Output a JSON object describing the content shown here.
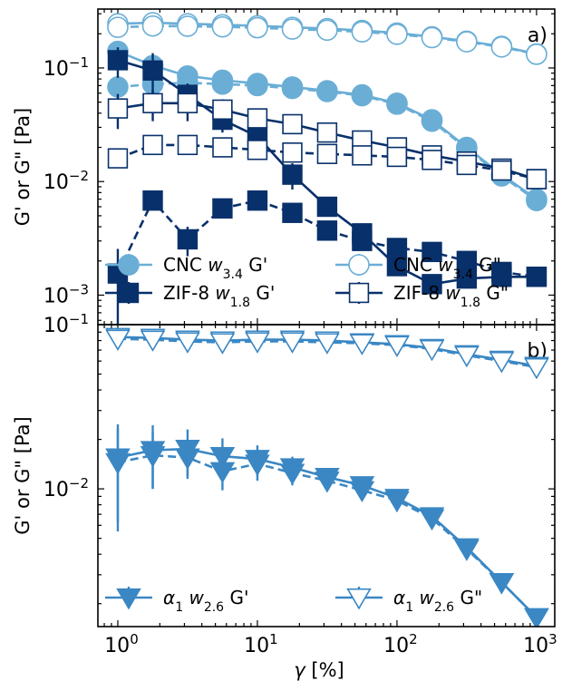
{
  "chart_data": [
    {
      "type": "line",
      "panel_label": "a)",
      "xscale": "log",
      "yscale": "log",
      "xlim": [
        0.72,
        1350
      ],
      "ylim": [
        0.00055,
        0.33
      ],
      "xlabel": "",
      "ylabel": "G' or G\" [Pa]",
      "y_ticks": [
        {
          "value": 0.001,
          "mantissa": "10",
          "exp": "−3"
        },
        {
          "value": 0.01,
          "mantissa": "10",
          "exp": "−2"
        },
        {
          "value": 0.1,
          "mantissa": "10",
          "exp": "−1"
        }
      ],
      "legend": {
        "placement": "lower-center",
        "columns": 2
      },
      "series": [
        {
          "name": "CNC w3.4 G'",
          "legend": {
            "pre": "CNC ",
            "var": "w",
            "sub": "3.4",
            "post": " G'"
          },
          "color": "#6aaed6",
          "marker": "circle",
          "filled": true,
          "linestyle": "solid",
          "x": [
            1,
            1.78,
            3.16,
            5.62,
            10,
            17.8,
            31.6,
            56.2,
            100,
            178,
            316,
            562,
            1000
          ],
          "y": [
            0.14,
            0.105,
            0.085,
            0.078,
            0.073,
            0.068,
            0.063,
            0.058,
            0.049,
            0.035,
            0.02,
            0.0115,
            0.007
          ],
          "yerr": [
            0.02,
            0.01,
            0.004,
            0.003,
            0.003,
            0.003,
            0.002,
            0.002,
            0.002,
            0.002,
            0.001,
            0.0005,
            0.0003
          ]
        },
        {
          "name": "CNC w3.4 G'' (dashed)",
          "legend": null,
          "color": "#6aaed6",
          "marker": "circle",
          "filled": true,
          "linestyle": "dashed",
          "x": [
            1,
            1.78,
            3.16,
            5.62,
            10,
            17.8,
            31.6,
            56.2,
            100,
            178,
            316,
            562,
            1000
          ],
          "y": [
            0.068,
            0.072,
            0.074,
            0.072,
            0.07,
            0.066,
            0.062,
            0.057,
            0.048,
            0.034,
            0.0195,
            0.0112,
            0.0068
          ],
          "yerr": [
            0.006,
            0.004,
            0.003,
            0.003,
            0.003,
            0.002,
            0.002,
            0.002,
            0.002,
            0.001,
            0.001,
            0.0005,
            0.0003
          ]
        },
        {
          "name": "CNC w3.4 G\"",
          "legend": {
            "pre": "CNC ",
            "var": "w",
            "sub": "3.4",
            "post": " G\""
          },
          "color": "#6aaed6",
          "marker": "circle",
          "filled": false,
          "linestyle": "solid",
          "x": [
            1,
            1.78,
            3.16,
            5.62,
            10,
            17.8,
            31.6,
            56.2,
            100,
            178,
            316,
            562,
            1000
          ],
          "y": [
            0.245,
            0.25,
            0.245,
            0.24,
            0.235,
            0.228,
            0.222,
            0.214,
            0.203,
            0.188,
            0.172,
            0.155,
            0.133
          ],
          "yerr": [
            0.01,
            0.008,
            0.006,
            0.005,
            0.005,
            0.004,
            0.004,
            0.004,
            0.004,
            0.003,
            0.003,
            0.003,
            0.003
          ]
        },
        {
          "name": "CNC w3.4 G\" (dashed)",
          "legend": null,
          "color": "#6aaed6",
          "marker": "circle",
          "filled": false,
          "linestyle": "dashed",
          "x": [
            1,
            1.78,
            3.16,
            5.62,
            10,
            17.8,
            31.6,
            56.2,
            100,
            178,
            316,
            562,
            1000
          ],
          "y": [
            0.228,
            0.234,
            0.233,
            0.23,
            0.226,
            0.22,
            0.215,
            0.208,
            0.198,
            0.185,
            0.17,
            0.153,
            0.132
          ],
          "yerr": [
            0.008,
            0.006,
            0.005,
            0.005,
            0.004,
            0.004,
            0.004,
            0.004,
            0.003,
            0.003,
            0.003,
            0.003,
            0.003
          ]
        },
        {
          "name": "ZIF-8 w1.8 G'",
          "legend": {
            "pre": "ZIF-8 ",
            "var": "w",
            "sub": "1.8",
            "post": " G'"
          },
          "color": "#08306b",
          "marker": "square",
          "filled": true,
          "linestyle": "solid",
          "x": [
            1,
            1.78,
            3.16,
            5.62,
            10,
            17.8,
            31.6,
            56.2,
            100,
            178,
            316,
            562,
            1000
          ],
          "y": [
            0.117,
            0.095,
            0.058,
            0.035,
            0.025,
            0.0115,
            0.006,
            0.0035,
            0.0018,
            0.00125,
            0.0014,
            0.00145,
            0.00145
          ],
          "yerr": [
            0.035,
            0.04,
            0.015,
            0.008,
            0.006,
            0.003,
            0.001,
            0.0005,
            0.0002,
            0.00015,
            0.00012,
            0.0001,
            0.0001
          ]
        },
        {
          "name": "ZIF-8 w1.8 G' (dashed)",
          "legend": null,
          "color": "#08306b",
          "marker": "square",
          "filled": true,
          "linestyle": "dashed",
          "x": [
            1,
            1.78,
            3.16,
            5.62,
            10,
            17.8,
            31.6,
            56.2,
            100,
            178,
            316,
            562,
            1000
          ],
          "y": [
            0.00155,
            0.0068,
            0.0031,
            0.0058,
            0.0068,
            0.0053,
            0.0037,
            0.003,
            0.0026,
            0.0024,
            0.002,
            0.0016,
            0.00145
          ],
          "yerr": [
            0.001,
            0.001,
            0.0009,
            0.0005,
            0.0004,
            0.0004,
            0.0005,
            0.0004,
            0.0002,
            0.0002,
            0.0002,
            0.0001,
            0.0001
          ]
        },
        {
          "name": "ZIF-8 w1.8 G\"",
          "legend": {
            "pre": "ZIF-8 ",
            "var": "w",
            "sub": "1.8",
            "post": " G\""
          },
          "color": "#08306b",
          "marker": "square",
          "filled": false,
          "linestyle": "solid",
          "x": [
            1,
            1.78,
            3.16,
            5.62,
            10,
            17.8,
            31.6,
            56.2,
            100,
            178,
            316,
            562,
            1000
          ],
          "y": [
            0.044,
            0.049,
            0.049,
            0.043,
            0.036,
            0.032,
            0.027,
            0.023,
            0.02,
            0.017,
            0.015,
            0.013,
            0.0105
          ],
          "yerr": [
            0.015,
            0.015,
            0.015,
            0.01,
            0.008,
            0.005,
            0.003,
            0.002,
            0.001,
            0.001,
            0.001,
            0.001,
            0.0005
          ]
        },
        {
          "name": "ZIF-8 w1.8 G\" (dashed)",
          "legend": null,
          "color": "#08306b",
          "marker": "square",
          "filled": false,
          "linestyle": "dashed",
          "x": [
            1,
            1.78,
            3.16,
            5.62,
            10,
            17.8,
            31.6,
            56.2,
            100,
            178,
            316,
            562,
            1000
          ],
          "y": [
            0.016,
            0.021,
            0.021,
            0.02,
            0.019,
            0.018,
            0.0175,
            0.017,
            0.0165,
            0.0155,
            0.014,
            0.0125,
            0.0105
          ],
          "yerr": [
            0.001,
            0.002,
            0.002,
            0.002,
            0.002,
            0.002,
            0.001,
            0.001,
            0.001,
            0.001,
            0.001,
            0.001,
            0.0005
          ]
        }
      ]
    },
    {
      "type": "line",
      "panel_label": "b)",
      "xscale": "log",
      "yscale": "log",
      "xlim": [
        0.72,
        1350
      ],
      "ylim": [
        0.00145,
        0.1
      ],
      "xlabel": "γ [%]",
      "ylabel": "G' or G\" [Pa]",
      "x_ticks": [
        {
          "value": 1,
          "mantissa": "10",
          "exp": "0"
        },
        {
          "value": 10,
          "mantissa": "10",
          "exp": "1"
        },
        {
          "value": 100,
          "mantissa": "10",
          "exp": "2"
        },
        {
          "value": 1000,
          "mantissa": "10",
          "exp": "3"
        }
      ],
      "y_ticks": [
        {
          "value": 0.01,
          "mantissa": "10",
          "exp": "−2"
        },
        {
          "value": 0.1,
          "mantissa": "10",
          "exp": "−1"
        }
      ],
      "legend": {
        "placement": "lower-center",
        "columns": 2
      },
      "series": [
        {
          "name": "α1 w2.6 G'",
          "legend": {
            "pre": "",
            "alpha": "α",
            "alpha_sub": "1",
            "var": "w",
            "sub": "2.6",
            "post": " G'"
          },
          "color": "#3a87c4",
          "marker": "triangle-down",
          "filled": true,
          "linestyle": "solid",
          "x": [
            1,
            1.78,
            3.16,
            5.62,
            10,
            17.8,
            31.6,
            56.2,
            100,
            178,
            316,
            562,
            1000
          ],
          "y": [
            0.0155,
            0.0172,
            0.0175,
            0.0158,
            0.0152,
            0.0135,
            0.0118,
            0.0105,
            0.0088,
            0.0068,
            0.0044,
            0.0027,
            0.00165
          ],
          "yerr": [
            0.0092,
            0.0072,
            0.0055,
            0.0045,
            0.0032,
            0.0022,
            0.0015,
            0.0012,
            0.0008,
            0.0005,
            0.0003,
            0.0002,
            0.0001
          ]
        },
        {
          "name": "α1 w2.6 G' (dashed)",
          "legend": null,
          "color": "#3a87c4",
          "marker": "triangle-down",
          "filled": true,
          "linestyle": "dashed",
          "x": [
            1,
            1.78,
            3.16,
            5.62,
            10,
            17.8,
            31.6,
            56.2,
            100,
            178,
            316,
            562,
            1000
          ],
          "y": [
            0.0145,
            0.016,
            0.0155,
            0.0128,
            0.0142,
            0.0125,
            0.0112,
            0.0098,
            0.0085,
            0.0066,
            0.0043,
            0.0027,
            0.00165
          ],
          "yerr": [
            0.009,
            0.006,
            0.004,
            0.003,
            0.003,
            0.002,
            0.0015,
            0.001,
            0.0007,
            0.0005,
            0.0003,
            0.0002,
            0.0001
          ]
        },
        {
          "name": "α1 w2.6 G\"",
          "legend": {
            "pre": "",
            "alpha": "α",
            "alpha_sub": "1",
            "var": "w",
            "sub": "2.6",
            "post": " G\""
          },
          "color": "#3a87c4",
          "marker": "triangle-down",
          "filled": false,
          "linestyle": "solid",
          "x": [
            1,
            1.78,
            3.16,
            5.62,
            10,
            17.8,
            31.6,
            56.2,
            100,
            178,
            316,
            562,
            1000
          ],
          "y": [
            0.084,
            0.083,
            0.081,
            0.08,
            0.081,
            0.081,
            0.08,
            0.078,
            0.076,
            0.072,
            0.066,
            0.061,
            0.056
          ],
          "yerr": [
            0.003,
            0.003,
            0.002,
            0.002,
            0.002,
            0.002,
            0.002,
            0.002,
            0.002,
            0.002,
            0.002,
            0.002,
            0.002
          ]
        },
        {
          "name": "α1 w2.6 G\" (dashed)",
          "legend": null,
          "color": "#3a87c4",
          "marker": "triangle-down",
          "filled": false,
          "linestyle": "dashed",
          "x": [
            1,
            1.78,
            3.16,
            5.62,
            10,
            17.8,
            31.6,
            56.2,
            100,
            178,
            316,
            562,
            1000
          ],
          "y": [
            0.082,
            0.081,
            0.079,
            0.078,
            0.079,
            0.079,
            0.078,
            0.077,
            0.075,
            0.071,
            0.065,
            0.06,
            0.055
          ],
          "yerr": [
            0.003,
            0.003,
            0.002,
            0.002,
            0.002,
            0.002,
            0.002,
            0.002,
            0.002,
            0.002,
            0.002,
            0.002,
            0.002
          ]
        }
      ]
    }
  ]
}
